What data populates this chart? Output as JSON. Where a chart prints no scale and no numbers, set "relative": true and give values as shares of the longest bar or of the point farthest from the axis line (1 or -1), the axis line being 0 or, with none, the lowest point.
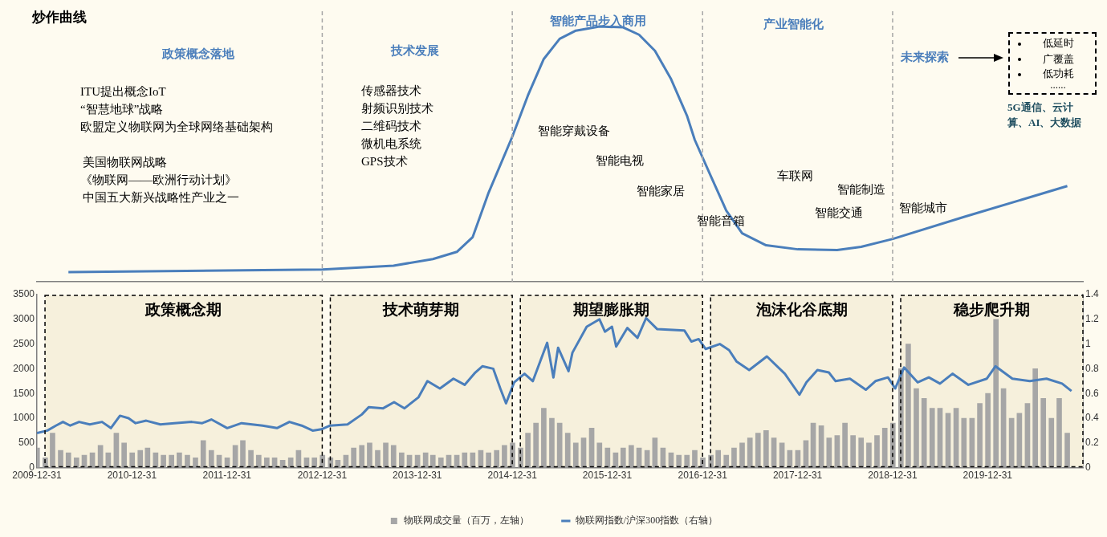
{
  "chart_data": [
    {
      "type": "line",
      "title": "炒作曲线",
      "relative": true,
      "xlim": [
        "2009-12-31",
        "2020-12-31"
      ],
      "series": [
        {
          "color": "#4a7ebb",
          "x": [
            "2010-05",
            "2013-01",
            "2013-10",
            "2014-03",
            "2014-06",
            "2014-08",
            "2014-10",
            "2015-01",
            "2015-03",
            "2015-05",
            "2015-07",
            "2015-09",
            "2015-12",
            "2016-03",
            "2016-05",
            "2016-07",
            "2016-09",
            "2016-11",
            "2016-12",
            "2017-02",
            "2017-04",
            "2017-06",
            "2017-09",
            "2018-01",
            "2018-06",
            "2018-09",
            "2019-01",
            "2019-10",
            "2020-11"
          ],
          "values": [
            0.038,
            0.048,
            0.063,
            0.089,
            0.117,
            0.175,
            0.349,
            0.571,
            0.73,
            0.873,
            0.952,
            0.984,
            1,
            0.997,
            0.968,
            0.905,
            0.794,
            0.651,
            0.556,
            0.413,
            0.279,
            0.19,
            0.143,
            0.127,
            0.124,
            0.137,
            0.168,
            0.254,
            0.375
          ]
        }
      ],
      "ref_lines": [
        {
          "axis": "x",
          "value": "2012-12-31",
          "color": "#a6a6a6",
          "line_style": "dashed"
        },
        {
          "axis": "x",
          "value": "2014-12-31",
          "color": "#a6a6a6",
          "line_style": "dashed"
        },
        {
          "axis": "x",
          "value": "2016-12-31",
          "color": "#a6a6a6",
          "line_style": "dashed"
        },
        {
          "axis": "x",
          "value": "2018-12-31",
          "color": "#a6a6a6",
          "line_style": "dashed"
        }
      ],
      "annotations": [
        "政策概念落地",
        "技术发展",
        "智能产品步入商用",
        "产业智能化",
        "未来探索",
        "ITU提出概念IoT",
        "“智慧地球”战略",
        "欧盟定义物联网为全球网络基础架构",
        "美国物联网战略",
        "《物联网——欧洲行动计划》",
        "中国五大新兴战略性产业之一",
        "传感器技术",
        "射频识别技术",
        "二维码技术",
        "微机电系统",
        "GPS技术",
        "智能穿戴设备",
        "智能电视",
        "智能家居",
        "智能音箱",
        "车联网",
        "智能制造",
        "智能交通",
        "智能城市",
        "低延时",
        "广覆盖",
        "低功耗",
        "......",
        "5G通信、云计算、AI、大数据"
      ]
    },
    {
      "type": "bar",
      "legend": "bottom",
      "xlim": [
        "2009-12-31",
        "2020-12-31"
      ],
      "xticks": [
        "2009-12-31",
        "2010-12-31",
        "2011-12-31",
        "2012-12-31",
        "2013-12-31",
        "2014-12-31",
        "2015-12-31",
        "2016-12-31",
        "2017-12-31",
        "2018-12-31",
        "2019-12-31"
      ],
      "ylim": [
        0,
        3500
      ],
      "yticks": [
        0,
        500,
        1000,
        1500,
        2000,
        2500,
        3000,
        3500
      ],
      "y2lim": [
        0,
        1.4
      ],
      "y2ticks": [
        0,
        0.2,
        0.4,
        0.6,
        0.8,
        1,
        1.2,
        1.4
      ],
      "series": [
        {
          "name": "物联网成交量（百万，左轴）",
          "type": "bar",
          "color": "#a6a6a6",
          "x": [
            "2010-01",
            "2010-02",
            "2010-03",
            "2010-04",
            "2010-05",
            "2010-06",
            "2010-07",
            "2010-08",
            "2010-09",
            "2010-10",
            "2010-11",
            "2010-12",
            "2011-01",
            "2011-02",
            "2011-03",
            "2011-04",
            "2011-05",
            "2011-06",
            "2011-07",
            "2011-08",
            "2011-09",
            "2011-10",
            "2011-11",
            "2011-12",
            "2012-01",
            "2012-02",
            "2012-03",
            "2012-04",
            "2012-05",
            "2012-06",
            "2012-07",
            "2012-08",
            "2012-09",
            "2012-10",
            "2012-11",
            "2012-12",
            "2013-01",
            "2013-02",
            "2013-03",
            "2013-04",
            "2013-05",
            "2013-06",
            "2013-07",
            "2013-08",
            "2013-09",
            "2013-10",
            "2013-11",
            "2013-12",
            "2014-01",
            "2014-02",
            "2014-03",
            "2014-04",
            "2014-05",
            "2014-06",
            "2014-07",
            "2014-08",
            "2014-09",
            "2014-10",
            "2014-11",
            "2014-12",
            "2015-01",
            "2015-02",
            "2015-03",
            "2015-04",
            "2015-05",
            "2015-06",
            "2015-07",
            "2015-08",
            "2015-09",
            "2015-10",
            "2015-11",
            "2015-12",
            "2016-01",
            "2016-02",
            "2016-03",
            "2016-04",
            "2016-05",
            "2016-06",
            "2016-07",
            "2016-08",
            "2016-09",
            "2016-10",
            "2016-11",
            "2016-12",
            "2017-01",
            "2017-02",
            "2017-03",
            "2017-04",
            "2017-05",
            "2017-06",
            "2017-07",
            "2017-08",
            "2017-09",
            "2017-10",
            "2017-11",
            "2017-12",
            "2018-01",
            "2018-02",
            "2018-03",
            "2018-04",
            "2018-05",
            "2018-06",
            "2018-07",
            "2018-08",
            "2018-09",
            "2018-10",
            "2018-11",
            "2018-12",
            "2019-01",
            "2019-02",
            "2019-03",
            "2019-04",
            "2019-05",
            "2019-06",
            "2019-07",
            "2019-08",
            "2019-09",
            "2019-10",
            "2019-11",
            "2019-12",
            "2020-01",
            "2020-02",
            "2020-03",
            "2020-04",
            "2020-05",
            "2020-06",
            "2020-07",
            "2020-08",
            "2020-09",
            "2020-10",
            "2020-11"
          ],
          "values": [
            400,
            200,
            700,
            350,
            300,
            200,
            250,
            300,
            450,
            300,
            700,
            500,
            300,
            350,
            400,
            300,
            250,
            250,
            300,
            250,
            200,
            550,
            350,
            250,
            200,
            450,
            550,
            350,
            250,
            200,
            200,
            150,
            200,
            350,
            200,
            200,
            250,
            200,
            150,
            250,
            400,
            450,
            500,
            350,
            500,
            450,
            300,
            250,
            250,
            300,
            250,
            200,
            250,
            250,
            300,
            300,
            350,
            300,
            350,
            450,
            500,
            400,
            700,
            900,
            1200,
            1000,
            900,
            700,
            500,
            600,
            800,
            500,
            400,
            300,
            400,
            450,
            400,
            350,
            600,
            400,
            300,
            250,
            250,
            350,
            200,
            250,
            350,
            250,
            400,
            500,
            600,
            700,
            750,
            600,
            500,
            350,
            350,
            550,
            900,
            850,
            600,
            650,
            900,
            650,
            600,
            500,
            650,
            800,
            900,
            2000,
            2500,
            1600,
            1400,
            1200,
            1200,
            1100,
            1200,
            1000,
            1000,
            1300,
            1500,
            3000,
            1600,
            1000,
            1100,
            1300,
            2000,
            1400,
            1000,
            1400,
            700
          ]
        },
        {
          "name": "物联网指数/沪深300指数（右轴）",
          "type": "line",
          "axis": "y2",
          "color": "#4a7ebb",
          "x": [
            "2009-12-31",
            "2010-02-09",
            "2010-03-14",
            "2010-04-10",
            "2010-05-08",
            "2010-06-11",
            "2010-07-22",
            "2010-09-07",
            "2010-10-11",
            "2010-11-15",
            "2010-12-18",
            "2011-01-14",
            "2011-02-24",
            "2011-04-19",
            "2011-06-12",
            "2011-08-18",
            "2011-09-27",
            "2011-11-01",
            "2012-01-01",
            "2012-02-25",
            "2012-05-16",
            "2012-07-10",
            "2012-08-27",
            "2012-10-13",
            "2012-11-24",
            "2012-12-28",
            "2013-01-30",
            "2013-04-07",
            "2013-06-01",
            "2013-06-28",
            "2013-08-22",
            "2013-10-03",
            "2013-11-12",
            "2014-01-05",
            "2014-02-08",
            "2014-03-28",
            "2014-05-19",
            "2014-07-01",
            "2014-08-11",
            "2014-09-07",
            "2014-10-19",
            "2014-11-15",
            "2014-12-07",
            "2015-01-07",
            "2015-02-16",
            "2015-03-20",
            "2015-05-14",
            "2015-06-07",
            "2015-06-25",
            "2015-08-04",
            "2015-08-19",
            "2015-10-13",
            "2015-12-01",
            "2015-12-22",
            "2016-01-18",
            "2016-02-03",
            "2016-03-17",
            "2016-04-25",
            "2016-05-28",
            "2016-07-10",
            "2016-10-22",
            "2016-11-18",
            "2016-12-16",
            "2017-01-12",
            "2017-03-07",
            "2017-04-12",
            "2017-05-10",
            "2017-06-28",
            "2017-09-04",
            "2017-11-12",
            "2018-01-07",
            "2018-02-03",
            "2018-03-17",
            "2018-04-30",
            "2018-05-26",
            "2018-07-20",
            "2018-09-19",
            "2018-10-26",
            "2018-12-13",
            "2019-01-10",
            "2019-02-13",
            "2019-04-06",
            "2019-05-19",
            "2019-07-01",
            "2019-08-18",
            "2019-10-18",
            "2019-12-28",
            "2020-01-30",
            "2020-04-04",
            "2020-06-10",
            "2020-08-13",
            "2020-10-12",
            "2020-11-17"
          ],
          "values": [
            0.28,
            0.3,
            0.34,
            0.37,
            0.34,
            0.37,
            0.35,
            0.37,
            0.32,
            0.42,
            0.4,
            0.36,
            0.38,
            0.35,
            0.36,
            0.37,
            0.36,
            0.39,
            0.32,
            0.36,
            0.34,
            0.32,
            0.37,
            0.34,
            0.3,
            0.31,
            0.34,
            0.35,
            0.43,
            0.49,
            0.48,
            0.53,
            0.48,
            0.57,
            0.7,
            0.64,
            0.72,
            0.67,
            0.77,
            0.82,
            0.8,
            0.64,
            0.52,
            0.69,
            0.76,
            0.7,
            1.01,
            0.73,
            0.97,
            0.78,
            0.93,
            1.14,
            1.2,
            1.1,
            1.14,
            0.98,
            1.13,
            1.05,
            1.21,
            1.12,
            1.11,
            1.02,
            1.04,
            0.96,
            1,
            0.95,
            0.86,
            0.79,
            0.9,
            0.76,
            0.59,
            0.69,
            0.79,
            0.77,
            0.7,
            0.72,
            0.63,
            0.7,
            0.73,
            0.64,
            0.81,
            0.69,
            0.73,
            0.68,
            0.76,
            0.67,
            0.72,
            0.82,
            0.72,
            0.7,
            0.72,
            0.68,
            0.62
          ]
        }
      ],
      "bands": [
        {
          "axis": "x",
          "from": "2010-01-31",
          "to": "2012-12-31",
          "label": "政策概念期",
          "color": "#f6f0dc"
        },
        {
          "axis": "x",
          "from": "2013-01-31",
          "to": "2014-12-31",
          "label": "技术萌芽期",
          "color": "#f6f0dc"
        },
        {
          "axis": "x",
          "from": "2015-01-31",
          "to": "2016-12-31",
          "label": "期望膨胀期",
          "color": "#f6f0dc"
        },
        {
          "axis": "x",
          "from": "2017-01-31",
          "to": "2018-12-31",
          "label": "泡沫化谷底期",
          "color": "#f6f0dc"
        },
        {
          "axis": "x",
          "from": "2019-01-31",
          "to": "2020-12-31",
          "label": "稳步爬升期",
          "color": "#f6f0dc"
        }
      ]
    }
  ]
}
